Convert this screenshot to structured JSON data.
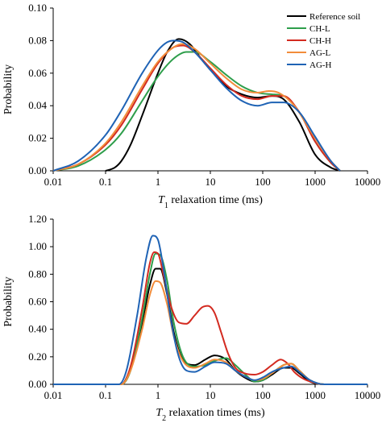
{
  "chart_data": [
    {
      "type": "line",
      "xscale": "log",
      "xlim": [
        0.01,
        10000
      ],
      "ylim": [
        0,
        0.1
      ],
      "xticks": [
        "0.01",
        "0.1",
        "1",
        "10",
        "100",
        "1000",
        "10000"
      ],
      "yticks": [
        "0.00",
        "0.02",
        "0.04",
        "0.06",
        "0.08",
        "0.10"
      ],
      "xlabel_var": "T",
      "xlabel_sub": "1",
      "xlabel_rest": " relaxation time (ms)",
      "ylabel": "Probability",
      "grid": false,
      "legend_position": "top-right",
      "series": [
        {
          "name": "Reference soil",
          "color": "#000000",
          "x": [
            0.1,
            0.15,
            0.2,
            0.3,
            0.5,
            1,
            1.5,
            2.5,
            4,
            7,
            10,
            20,
            40,
            80,
            150,
            250,
            500,
            1000,
            2000,
            3000
          ],
          "y": [
            0.0,
            0.002,
            0.006,
            0.016,
            0.034,
            0.06,
            0.073,
            0.081,
            0.078,
            0.068,
            0.062,
            0.052,
            0.047,
            0.045,
            0.046,
            0.044,
            0.03,
            0.01,
            0.002,
            0.0
          ]
        },
        {
          "name": "CH-L",
          "color": "#2e9e4b",
          "x": [
            0.01,
            0.03,
            0.1,
            0.2,
            0.5,
            1,
            2,
            3.5,
            5,
            10,
            20,
            40,
            80,
            150,
            250,
            500,
            1000,
            2000,
            3000
          ],
          "y": [
            0.0,
            0.003,
            0.013,
            0.023,
            0.043,
            0.058,
            0.069,
            0.073,
            0.073,
            0.067,
            0.059,
            0.052,
            0.048,
            0.047,
            0.046,
            0.036,
            0.018,
            0.005,
            0.0
          ]
        },
        {
          "name": "CH-H",
          "color": "#d32a20",
          "x": [
            0.01,
            0.03,
            0.1,
            0.2,
            0.5,
            1,
            2,
            3,
            5,
            10,
            20,
            40,
            80,
            150,
            250,
            500,
            1000,
            2000,
            3000
          ],
          "y": [
            0.0,
            0.004,
            0.016,
            0.028,
            0.05,
            0.066,
            0.076,
            0.077,
            0.073,
            0.063,
            0.053,
            0.046,
            0.044,
            0.046,
            0.046,
            0.036,
            0.018,
            0.005,
            0.0
          ]
        },
        {
          "name": "AG-L",
          "color": "#f28c3a",
          "x": [
            0.01,
            0.03,
            0.1,
            0.2,
            0.5,
            1,
            2,
            3,
            5,
            10,
            20,
            40,
            80,
            130,
            200,
            400,
            1000,
            2000,
            3000
          ],
          "y": [
            0.0,
            0.004,
            0.017,
            0.03,
            0.052,
            0.067,
            0.076,
            0.078,
            0.075,
            0.066,
            0.057,
            0.05,
            0.048,
            0.049,
            0.048,
            0.04,
            0.02,
            0.006,
            0.0
          ]
        },
        {
          "name": "AG-H",
          "color": "#1f63b5",
          "x": [
            0.01,
            0.03,
            0.1,
            0.2,
            0.5,
            1,
            1.5,
            2,
            3,
            5,
            10,
            20,
            40,
            80,
            150,
            250,
            500,
            1000,
            2000,
            3000
          ],
          "y": [
            0.0,
            0.006,
            0.022,
            0.037,
            0.06,
            0.074,
            0.079,
            0.08,
            0.079,
            0.073,
            0.062,
            0.051,
            0.043,
            0.04,
            0.042,
            0.042,
            0.036,
            0.021,
            0.006,
            0.0
          ]
        }
      ]
    },
    {
      "type": "line",
      "xscale": "log",
      "xlim": [
        0.01,
        10000
      ],
      "ylim": [
        0,
        1.2
      ],
      "xticks": [
        "0.01",
        "0.1",
        "1",
        "10",
        "100",
        "1000",
        "10000"
      ],
      "yticks": [
        "0.00",
        "0.20",
        "0.40",
        "0.60",
        "0.80",
        "1.00",
        "1.20"
      ],
      "xlabel_var": "T",
      "xlabel_sub": "2",
      "xlabel_rest": " relaxation times (ms)",
      "ylabel": "Probability",
      "grid": false,
      "series": [
        {
          "name": "Reference soil",
          "color": "#000000",
          "x": [
            0.01,
            0.2,
            0.3,
            0.5,
            0.7,
            0.9,
            1.1,
            1.5,
            2,
            3,
            5,
            8,
            12,
            20,
            30,
            50,
            70,
            100,
            150,
            250,
            350,
            500,
            800,
            1500,
            10000
          ],
          "y": [
            0.0,
            0.0,
            0.12,
            0.45,
            0.72,
            0.84,
            0.84,
            0.65,
            0.38,
            0.18,
            0.14,
            0.18,
            0.21,
            0.18,
            0.1,
            0.04,
            0.02,
            0.03,
            0.07,
            0.12,
            0.12,
            0.08,
            0.02,
            0.0,
            0.0
          ]
        },
        {
          "name": "CH-L",
          "color": "#2e9e4b",
          "x": [
            0.01,
            0.2,
            0.3,
            0.5,
            0.7,
            0.9,
            1.1,
            1.5,
            2,
            3,
            5,
            8,
            12,
            20,
            30,
            50,
            70,
            100,
            150,
            250,
            350,
            500,
            800,
            1500,
            10000
          ],
          "y": [
            0.0,
            0.0,
            0.1,
            0.48,
            0.8,
            0.95,
            0.94,
            0.75,
            0.45,
            0.2,
            0.13,
            0.14,
            0.17,
            0.19,
            0.14,
            0.06,
            0.02,
            0.03,
            0.08,
            0.14,
            0.15,
            0.1,
            0.03,
            0.0,
            0.0
          ]
        },
        {
          "name": "CH-H",
          "color": "#d32a20",
          "x": [
            0.01,
            0.2,
            0.3,
            0.5,
            0.7,
            0.85,
            1,
            1.3,
            1.8,
            2.5,
            3.5,
            5,
            7,
            9,
            12,
            16,
            22,
            30,
            45,
            70,
            100,
            150,
            220,
            300,
            400,
            600,
            1000,
            1500,
            10000
          ],
          "y": [
            0.0,
            0.0,
            0.13,
            0.55,
            0.88,
            0.96,
            0.95,
            0.78,
            0.56,
            0.45,
            0.44,
            0.5,
            0.56,
            0.57,
            0.52,
            0.38,
            0.22,
            0.12,
            0.08,
            0.07,
            0.09,
            0.14,
            0.18,
            0.15,
            0.09,
            0.04,
            0.01,
            0.0,
            0.0
          ]
        },
        {
          "name": "AG-L",
          "color": "#f28c3a",
          "x": [
            0.01,
            0.2,
            0.3,
            0.5,
            0.7,
            0.9,
            1.1,
            1.5,
            2,
            3,
            5,
            8,
            12,
            20,
            30,
            50,
            70,
            100,
            150,
            250,
            350,
            500,
            800,
            1500,
            10000
          ],
          "y": [
            0.0,
            0.0,
            0.1,
            0.4,
            0.65,
            0.75,
            0.74,
            0.58,
            0.35,
            0.17,
            0.12,
            0.15,
            0.18,
            0.16,
            0.1,
            0.05,
            0.03,
            0.04,
            0.08,
            0.14,
            0.15,
            0.1,
            0.03,
            0.0,
            0.0
          ]
        },
        {
          "name": "AG-H",
          "color": "#1f63b5",
          "x": [
            0.01,
            0.18,
            0.25,
            0.4,
            0.6,
            0.8,
            1,
            1.3,
            1.8,
            2.5,
            3.5,
            5,
            8,
            12,
            20,
            30,
            50,
            70,
            100,
            150,
            250,
            350,
            500,
            800,
            1500,
            10000
          ],
          "y": [
            0.0,
            0.0,
            0.1,
            0.5,
            0.92,
            1.08,
            1.05,
            0.82,
            0.45,
            0.2,
            0.1,
            0.09,
            0.13,
            0.16,
            0.15,
            0.1,
            0.05,
            0.03,
            0.05,
            0.09,
            0.12,
            0.13,
            0.09,
            0.03,
            0.0,
            0.0
          ]
        }
      ]
    }
  ]
}
